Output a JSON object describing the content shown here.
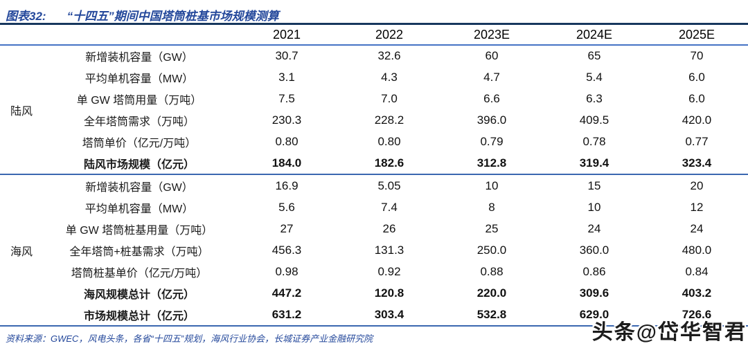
{
  "title": {
    "prefix": "图表32:",
    "text": "“十四五”期间中国塔筒桩基市场规模测算"
  },
  "chart_data": {
    "type": "table",
    "title": "“十四五”期间中国塔筒桩基市场规模测算",
    "columns": [
      "2021",
      "2022",
      "2023E",
      "2024E",
      "2025E"
    ],
    "sections": [
      {
        "group": "陆风",
        "rows": [
          {
            "label": "新增装机容量（GW）",
            "values": [
              "30.7",
              "32.6",
              "60",
              "65",
              "70"
            ]
          },
          {
            "label": "平均单机容量（MW）",
            "values": [
              "3.1",
              "4.3",
              "4.7",
              "5.4",
              "6.0"
            ]
          },
          {
            "label": "单 GW 塔筒用量（万吨）",
            "values": [
              "7.5",
              "7.0",
              "6.6",
              "6.3",
              "6.0"
            ]
          },
          {
            "label": "全年塔筒需求（万吨）",
            "values": [
              "230.3",
              "228.2",
              "396.0",
              "409.5",
              "420.0"
            ]
          },
          {
            "label": "塔筒单价（亿元/万吨）",
            "values": [
              "0.80",
              "0.80",
              "0.79",
              "0.78",
              "0.77"
            ]
          },
          {
            "label": "陆风市场规模（亿元）",
            "values": [
              "184.0",
              "182.6",
              "312.8",
              "319.4",
              "323.4"
            ],
            "bold": true
          }
        ]
      },
      {
        "group": "海风",
        "rows": [
          {
            "label": "新增装机容量（GW）",
            "values": [
              "16.9",
              "5.05",
              "10",
              "15",
              "20"
            ]
          },
          {
            "label": "平均单机容量（MW）",
            "values": [
              "5.6",
              "7.4",
              "8",
              "10",
              "12"
            ]
          },
          {
            "label": "单 GW 塔筒桩基用量（万吨）",
            "values": [
              "27",
              "26",
              "25",
              "24",
              "24"
            ]
          },
          {
            "label": "全年塔筒+桩基需求（万吨）",
            "values": [
              "456.3",
              "131.3",
              "250.0",
              "360.0",
              "480.0"
            ]
          },
          {
            "label": "塔筒桩基单价（亿元/万吨）",
            "values": [
              "0.98",
              "0.92",
              "0.88",
              "0.86",
              "0.84"
            ]
          },
          {
            "label": "海风规模总计（亿元）",
            "values": [
              "447.2",
              "120.8",
              "220.0",
              "309.6",
              "403.2"
            ],
            "bold": true
          },
          {
            "label": "市场规模总计（亿元）",
            "values": [
              "631.2",
              "303.4",
              "532.8",
              "629.0",
              "726.6"
            ],
            "bold": true
          }
        ]
      }
    ]
  },
  "footer": {
    "source": "资料来源：GWEC，风电头条，各省“十四五”规划，海风行业协会，长城证券产业金融研究院"
  },
  "watermark": {
    "text": "头条@岱华智君"
  },
  "colors": {
    "title_blue": "#24489b",
    "border_navy": "#17375e",
    "border_blue": "#4472c4",
    "separator_blue": "#3a67b0",
    "text": "#111111"
  }
}
